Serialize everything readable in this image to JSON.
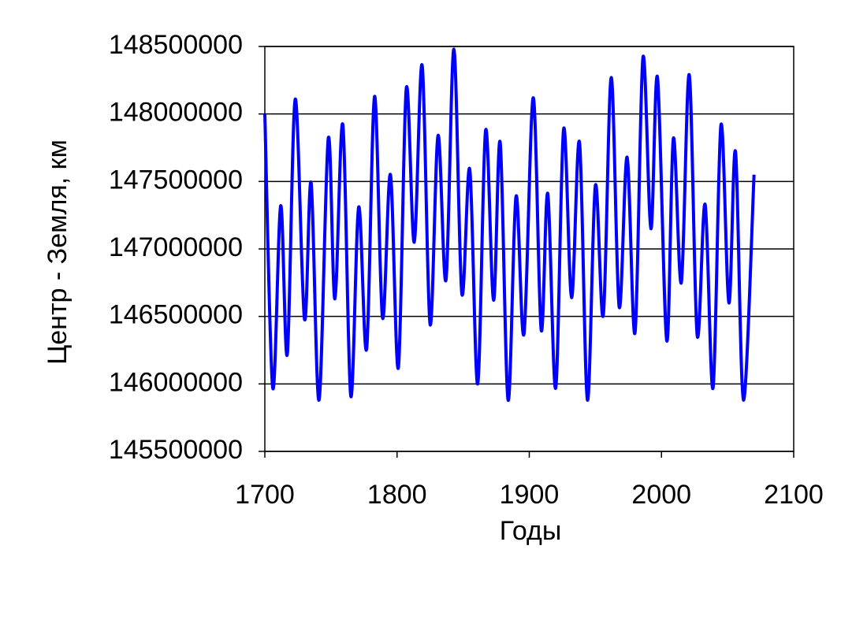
{
  "chart_data": {
    "type": "line",
    "x_label": "Годы",
    "y_label": "Центр - Земля, км",
    "x": [
      1700,
      1706,
      1712,
      1717,
      1723,
      1730,
      1735,
      1741,
      1748,
      1753,
      1759,
      1765,
      1771,
      1777,
      1783,
      1789,
      1795,
      1801,
      1807,
      1813,
      1819,
      1825,
      1831,
      1837,
      1843,
      1849,
      1855,
      1861,
      1867,
      1873,
      1878,
      1884,
      1890,
      1896,
      1903,
      1909,
      1914,
      1920,
      1926,
      1932,
      1938,
      1944,
      1950,
      1956,
      1962,
      1968,
      1974,
      1980,
      1986,
      1992,
      1997,
      2004,
      2009,
      2015,
      2021,
      2027,
      2033,
      2039,
      2045,
      2051,
      2056,
      2062,
      2070
    ],
    "series": [
      {
        "color": "#0000ff",
        "values": [
          148000000,
          145970000,
          147320000,
          146220000,
          148110000,
          146480000,
          147490000,
          145880000,
          147820000,
          146630000,
          147920000,
          145910000,
          147310000,
          146260000,
          148130000,
          146490000,
          147550000,
          146120000,
          148190000,
          147050000,
          148360000,
          146440000,
          147840000,
          146770000,
          148480000,
          146670000,
          147590000,
          146000000,
          147880000,
          146620000,
          147790000,
          145880000,
          147390000,
          146370000,
          148120000,
          146400000,
          147410000,
          145970000,
          147890000,
          146640000,
          147790000,
          145880000,
          147470000,
          146510000,
          148270000,
          146570000,
          147680000,
          146380000,
          148420000,
          147150000,
          148270000,
          146320000,
          147820000,
          146750000,
          148290000,
          146360000,
          147330000,
          145970000,
          147920000,
          146600000,
          147720000,
          145880000,
          147550000
        ]
      }
    ],
    "xlim": [
      1700,
      2100
    ],
    "xticks": [
      1700,
      1800,
      1900,
      2000,
      2100
    ],
    "ylim": [
      145500000,
      148500000
    ],
    "yticks": [
      145500000,
      146000000,
      146500000,
      147000000,
      147500000,
      148000000,
      148500000
    ],
    "grid": true
  }
}
